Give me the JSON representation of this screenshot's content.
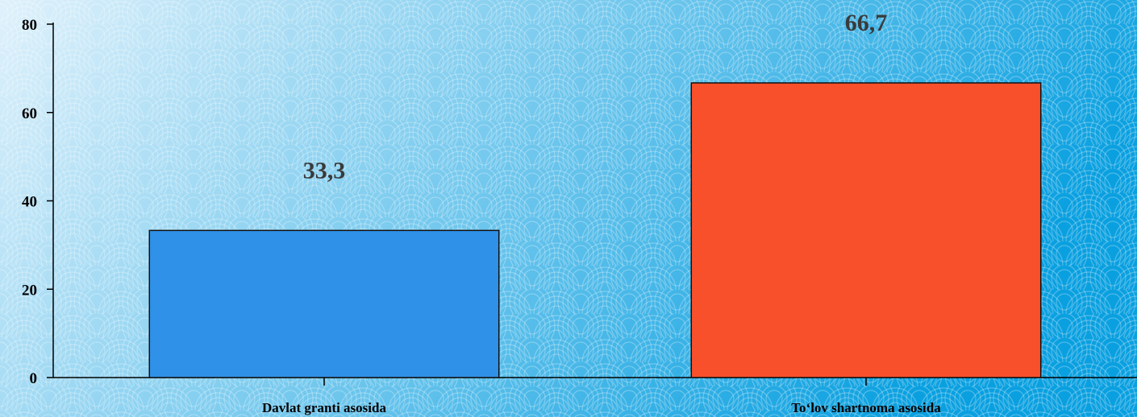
{
  "chart_data": {
    "type": "bar",
    "categories": [
      "Davlat granti asosida",
      "To‘lov shartnoma asosida"
    ],
    "values": [
      33.3,
      66.7
    ],
    "data_labels": [
      "33,3",
      "66,7"
    ],
    "colors": [
      "#2f91e8",
      "#f7502b"
    ],
    "ylim": [
      0,
      80
    ],
    "yticks": [
      0,
      20,
      40,
      60,
      80
    ],
    "grid": false,
    "legend": "none",
    "background": [
      "#dff1fb",
      "#0aa0e0"
    ]
  }
}
